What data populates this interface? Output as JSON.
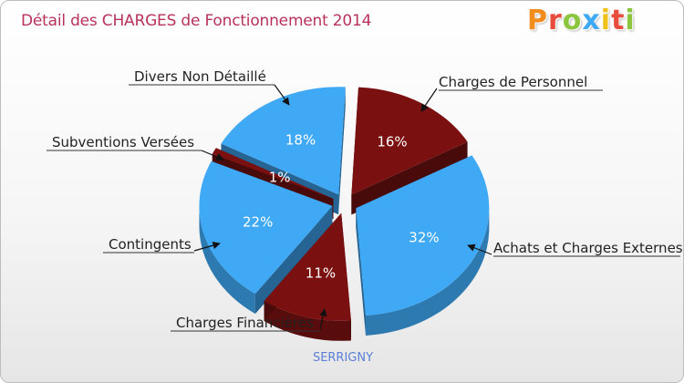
{
  "chart_data": {
    "type": "pie",
    "title": "Détail des CHARGES de Fonctionnement 2014",
    "subtitle": "SERRIGNY",
    "slices": [
      {
        "label": "Charges de Personnel",
        "value": 16,
        "pct_label": "16%",
        "color": "#7a1010"
      },
      {
        "label": "Achats et Charges Externes",
        "value": 32,
        "pct_label": "32%",
        "color": "#3fa9f5"
      },
      {
        "label": "Charges Financières",
        "value": 11,
        "pct_label": "11%",
        "color": "#7a1010"
      },
      {
        "label": "Contingents",
        "value": 22,
        "pct_label": "22%",
        "color": "#3fa9f5"
      },
      {
        "label": "Subventions Versées",
        "value": 1,
        "pct_label": "1%",
        "color": "#7a1010"
      },
      {
        "label": "Divers Non Détaillé",
        "value": 18,
        "pct_label": "18%",
        "color": "#3fa9f5"
      }
    ]
  },
  "brand": {
    "letters": [
      {
        "ch": "P",
        "color": "#f28c1c"
      },
      {
        "ch": "r",
        "color": "#e74c3c"
      },
      {
        "ch": "o",
        "color": "#8cc63f"
      },
      {
        "ch": "x",
        "color": "#3fa9f5"
      },
      {
        "ch": "i",
        "color": "#f2c21c"
      },
      {
        "ch": "t",
        "color": "#e74c3c"
      },
      {
        "ch": "i",
        "color": "#8cc63f"
      }
    ]
  }
}
